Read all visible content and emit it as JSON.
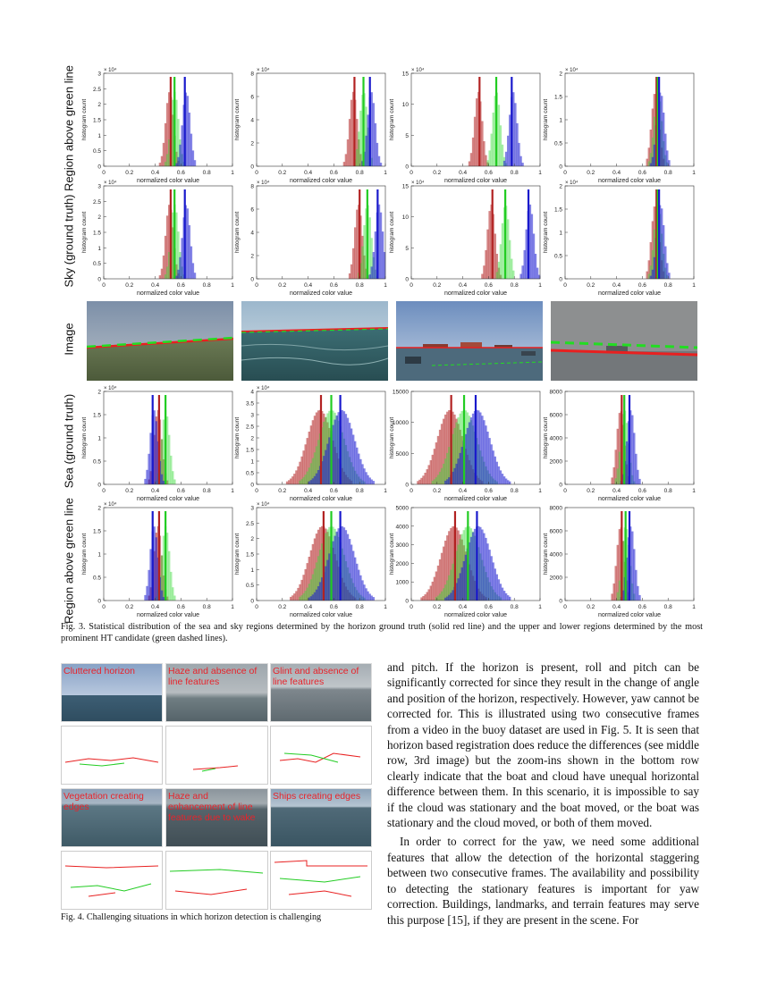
{
  "figure3": {
    "row_labels": [
      "Region above green line",
      "Sky (ground truth)",
      "Image",
      "Sea (ground truth)",
      "Region above green line"
    ],
    "xlabel": "normalized color value",
    "ylabel": "histogram count",
    "caption": "Fig. 3.   Statistical distribution of the sea and sky regions determined by the horizon ground truth (solid red line) and the upper and lower regions determined by the most prominent HT candidate (green dashed lines)."
  },
  "chart_data": [
    {
      "type": "bar",
      "panel": "r1c1",
      "ylabel": "histogram count",
      "xlabel": "normalized color value",
      "multiplier": "× 10⁴",
      "xlim": [
        0,
        1
      ],
      "ylim": [
        0,
        3
      ],
      "yticks": [
        0,
        0.5,
        1,
        1.5,
        2,
        2.5,
        3
      ],
      "xticks": [
        0,
        0.2,
        0.4,
        0.6,
        0.8,
        1
      ],
      "series": [
        {
          "name": "red",
          "peak_x": 0.52,
          "mean": 0.52,
          "color": "#b22222"
        },
        {
          "name": "green",
          "peak_x": 0.55,
          "mean": 0.55,
          "color": "#22cc22"
        },
        {
          "name": "blue",
          "peak_x": 0.62,
          "mean": 0.63,
          "color": "#1a1acc"
        }
      ]
    },
    {
      "type": "bar",
      "panel": "r1c2",
      "ylabel": "histogram count",
      "xlabel": "normalized color value",
      "multiplier": "× 10⁴",
      "xlim": [
        0,
        1
      ],
      "ylim": [
        0,
        8
      ],
      "yticks": [
        0,
        2,
        4,
        6,
        8
      ],
      "xticks": [
        0,
        0.2,
        0.4,
        0.6,
        0.8,
        1
      ],
      "series": [
        {
          "name": "red",
          "mean": 0.76,
          "color": "#b22222"
        },
        {
          "name": "green",
          "mean": 0.83,
          "color": "#22cc22"
        },
        {
          "name": "blue",
          "mean": 0.88,
          "color": "#1a1acc"
        }
      ]
    },
    {
      "type": "bar",
      "panel": "r1c3",
      "ylabel": "histogram count",
      "xlabel": "normalized color value",
      "multiplier": "× 10⁴",
      "xlim": [
        0,
        1
      ],
      "ylim": [
        0,
        15
      ],
      "yticks": [
        0,
        5,
        10,
        15
      ],
      "xticks": [
        0,
        0.2,
        0.4,
        0.6,
        0.8,
        1
      ],
      "series": [
        {
          "name": "red",
          "mean": 0.53,
          "color": "#b22222"
        },
        {
          "name": "green",
          "mean": 0.66,
          "color": "#22cc22"
        },
        {
          "name": "blue",
          "mean": 0.78,
          "color": "#1a1acc"
        }
      ]
    },
    {
      "type": "bar",
      "panel": "r1c4",
      "ylabel": "histogram count",
      "xlabel": "normalized color value",
      "multiplier": "× 10⁴",
      "xlim": [
        0,
        1
      ],
      "ylim": [
        0,
        2
      ],
      "yticks": [
        0,
        0.5,
        1,
        1.5,
        2
      ],
      "xticks": [
        0,
        0.2,
        0.4,
        0.6,
        0.8,
        1
      ],
      "series": [
        {
          "name": "red",
          "mean": 0.71,
          "color": "#b22222"
        },
        {
          "name": "green",
          "mean": 0.72,
          "color": "#22cc22"
        },
        {
          "name": "blue",
          "mean": 0.73,
          "color": "#1a1acc"
        }
      ]
    },
    {
      "type": "bar",
      "panel": "r2c1",
      "ylabel": "histogram count",
      "xlabel": "normalized color value",
      "multiplier": "× 10⁴",
      "xlim": [
        0,
        1
      ],
      "ylim": [
        0,
        3
      ],
      "yticks": [
        0,
        0.5,
        1,
        1.5,
        2,
        2.5,
        3
      ],
      "xticks": [
        0,
        0.2,
        0.4,
        0.6,
        0.8,
        1
      ],
      "series": [
        {
          "name": "red",
          "mean": 0.52,
          "color": "#b22222"
        },
        {
          "name": "green",
          "mean": 0.55,
          "color": "#22cc22"
        },
        {
          "name": "blue",
          "mean": 0.63,
          "color": "#1a1acc"
        }
      ]
    },
    {
      "type": "bar",
      "panel": "r2c2",
      "ylabel": "histogram count",
      "xlabel": "normalized color value",
      "multiplier": "× 10⁴",
      "xlim": [
        0,
        1
      ],
      "ylim": [
        0,
        8
      ],
      "yticks": [
        0,
        2,
        4,
        6,
        8
      ],
      "xticks": [
        0,
        0.2,
        0.4,
        0.6,
        0.8,
        1
      ],
      "series": [
        {
          "name": "red",
          "mean": 0.8,
          "color": "#b22222"
        },
        {
          "name": "green",
          "mean": 0.86,
          "color": "#22cc22"
        },
        {
          "name": "blue",
          "mean": 0.94,
          "color": "#1a1acc"
        }
      ]
    },
    {
      "type": "bar",
      "panel": "r2c3",
      "ylabel": "histogram count",
      "xlabel": "normalized color value",
      "multiplier": "× 10⁴",
      "xlim": [
        0,
        1
      ],
      "ylim": [
        0,
        15
      ],
      "yticks": [
        0,
        5,
        10,
        15
      ],
      "xticks": [
        0,
        0.2,
        0.4,
        0.6,
        0.8,
        1
      ],
      "series": [
        {
          "name": "red",
          "mean": 0.63,
          "color": "#b22222"
        },
        {
          "name": "green",
          "mean": 0.73,
          "color": "#22cc22"
        },
        {
          "name": "blue",
          "mean": 0.91,
          "color": "#1a1acc"
        }
      ]
    },
    {
      "type": "bar",
      "panel": "r2c4",
      "ylabel": "histogram count",
      "xlabel": "normalized color value",
      "multiplier": "× 10⁴",
      "xlim": [
        0,
        1
      ],
      "ylim": [
        0,
        2
      ],
      "yticks": [
        0,
        0.5,
        1,
        1.5,
        2
      ],
      "xticks": [
        0,
        0.2,
        0.4,
        0.6,
        0.8,
        1
      ],
      "series": [
        {
          "name": "red",
          "mean": 0.71,
          "color": "#b22222"
        },
        {
          "name": "green",
          "mean": 0.72,
          "color": "#22cc22"
        },
        {
          "name": "blue",
          "mean": 0.73,
          "color": "#1a1acc"
        }
      ]
    },
    {
      "type": "bar",
      "panel": "r4c1",
      "ylabel": "histogram count",
      "xlabel": "normalized color value",
      "multiplier": "× 10⁴",
      "xlim": [
        0,
        1
      ],
      "ylim": [
        0,
        2
      ],
      "yticks": [
        0,
        0.5,
        1,
        1.5,
        2
      ],
      "xticks": [
        0,
        0.2,
        0.4,
        0.6,
        0.8,
        1
      ],
      "series": [
        {
          "name": "red",
          "mean": 0.43,
          "color": "#b22222"
        },
        {
          "name": "green",
          "mean": 0.48,
          "color": "#22cc22"
        },
        {
          "name": "blue",
          "mean": 0.38,
          "color": "#1a1acc"
        }
      ]
    },
    {
      "type": "bar",
      "panel": "r4c2",
      "ylabel": "histogram count",
      "xlabel": "normalized color value",
      "multiplier": "× 10⁴",
      "xlim": [
        0,
        1
      ],
      "ylim": [
        0,
        4
      ],
      "yticks": [
        0,
        0.5,
        1,
        1.5,
        2,
        2.5,
        3,
        3.5,
        4
      ],
      "xticks": [
        0,
        0.2,
        0.4,
        0.6,
        0.8,
        1
      ],
      "series": [
        {
          "name": "red",
          "mean": 0.5,
          "color": "#b22222"
        },
        {
          "name": "green",
          "mean": 0.58,
          "color": "#22cc22"
        },
        {
          "name": "blue",
          "mean": 0.65,
          "color": "#1a1acc"
        }
      ]
    },
    {
      "type": "bar",
      "panel": "r4c3",
      "ylabel": "histogram count",
      "xlabel": "normalized color value",
      "xlim": [
        0,
        1
      ],
      "ylim": [
        0,
        15000
      ],
      "yticks": [
        0,
        5000,
        10000,
        15000
      ],
      "xticks": [
        0,
        0.2,
        0.4,
        0.6,
        0.8,
        1
      ],
      "series": [
        {
          "name": "red",
          "mean": 0.31,
          "color": "#b22222"
        },
        {
          "name": "green",
          "mean": 0.41,
          "color": "#22cc22"
        },
        {
          "name": "blue",
          "mean": 0.5,
          "color": "#1a1acc"
        }
      ]
    },
    {
      "type": "bar",
      "panel": "r4c4",
      "ylabel": "histogram count",
      "xlabel": "normalized color value",
      "xlim": [
        0,
        1
      ],
      "ylim": [
        0,
        8000
      ],
      "yticks": [
        0,
        2000,
        4000,
        6000,
        8000
      ],
      "xticks": [
        0,
        0.2,
        0.4,
        0.6,
        0.8,
        1
      ],
      "series": [
        {
          "name": "red",
          "mean": 0.44,
          "color": "#b22222"
        },
        {
          "name": "green",
          "mean": 0.46,
          "color": "#22cc22"
        },
        {
          "name": "blue",
          "mean": 0.5,
          "color": "#1a1acc"
        }
      ]
    },
    {
      "type": "bar",
      "panel": "r5c1",
      "ylabel": "histogram count",
      "xlabel": "normalized color value",
      "multiplier": "× 10⁴",
      "xlim": [
        0,
        1
      ],
      "ylim": [
        0,
        2
      ],
      "yticks": [
        0,
        0.5,
        1,
        1.5,
        2
      ],
      "xticks": [
        0,
        0.2,
        0.4,
        0.6,
        0.8,
        1
      ],
      "series": [
        {
          "name": "red",
          "mean": 0.43,
          "color": "#b22222"
        },
        {
          "name": "green",
          "mean": 0.48,
          "color": "#22cc22"
        },
        {
          "name": "blue",
          "mean": 0.38,
          "color": "#1a1acc"
        }
      ]
    },
    {
      "type": "bar",
      "panel": "r5c2",
      "ylabel": "histogram count",
      "xlabel": "normalized color value",
      "multiplier": "× 10⁴",
      "xlim": [
        0,
        1
      ],
      "ylim": [
        0,
        3
      ],
      "yticks": [
        0,
        0.5,
        1,
        1.5,
        2,
        2.5,
        3
      ],
      "xticks": [
        0,
        0.2,
        0.4,
        0.6,
        0.8,
        1
      ],
      "series": [
        {
          "name": "red",
          "mean": 0.52,
          "color": "#b22222"
        },
        {
          "name": "green",
          "mean": 0.58,
          "color": "#22cc22"
        },
        {
          "name": "blue",
          "mean": 0.65,
          "color": "#1a1acc"
        }
      ]
    },
    {
      "type": "bar",
      "panel": "r5c3",
      "ylabel": "histogram count",
      "xlabel": "normalized color value",
      "xlim": [
        0,
        1
      ],
      "ylim": [
        0,
        5000
      ],
      "yticks": [
        0,
        1000,
        2000,
        3000,
        4000,
        5000
      ],
      "xticks": [
        0,
        0.2,
        0.4,
        0.6,
        0.8,
        1
      ],
      "series": [
        {
          "name": "red",
          "mean": 0.34,
          "color": "#b22222"
        },
        {
          "name": "green",
          "mean": 0.44,
          "color": "#22cc22"
        },
        {
          "name": "blue",
          "mean": 0.51,
          "color": "#1a1acc"
        }
      ]
    },
    {
      "type": "bar",
      "panel": "r5c4",
      "ylabel": "histogram count",
      "xlabel": "normalized color value",
      "xlim": [
        0,
        1
      ],
      "ylim": [
        0,
        8000
      ],
      "yticks": [
        0,
        2000,
        4000,
        6000,
        8000
      ],
      "xticks": [
        0,
        0.2,
        0.4,
        0.6,
        0.8,
        1
      ],
      "series": [
        {
          "name": "red",
          "mean": 0.44,
          "color": "#b22222"
        },
        {
          "name": "green",
          "mean": 0.47,
          "color": "#22cc22"
        },
        {
          "name": "blue",
          "mean": 0.5,
          "color": "#1a1acc"
        }
      ]
    }
  ],
  "figure4": {
    "labels": [
      "Cluttered horizon",
      "Haze and absence of line features",
      "Glint and absence of line features",
      "Vegetation creating edges",
      "Haze and enhancement of line features due to wake",
      "Ships creating edges"
    ],
    "caption": "Fig. 4.   Challenging situations in which horizon detection is challenging"
  },
  "body": {
    "para1": "and pitch. If the horizon is present, roll and pitch can be significantly corrected for since they result in the change of angle and position of the horizon, respectively. However, yaw cannot be corrected for. This is illustrated using two consecutive frames from a video in the buoy dataset are used in Fig. 5. It is seen that horizon based registration does reduce the differences (see middle row, 3rd image) but the zoom-ins shown in the bottom row clearly indicate that the boat and cloud have unequal horizontal difference between them. In this scenario, it is impossible to say if the cloud was stationary and the boat moved, or the boat was stationary and the cloud moved, or both of them moved.",
    "para2": "In order to correct for the yaw, we need some additional features that allow the detection of the horizontal staggering between two consecutive frames. The availability and possibility to detecting the stationary features is important for yaw correction. Buildings, landmarks, and terrain features may serve this purpose [15], if they are present in the scene. For"
  }
}
